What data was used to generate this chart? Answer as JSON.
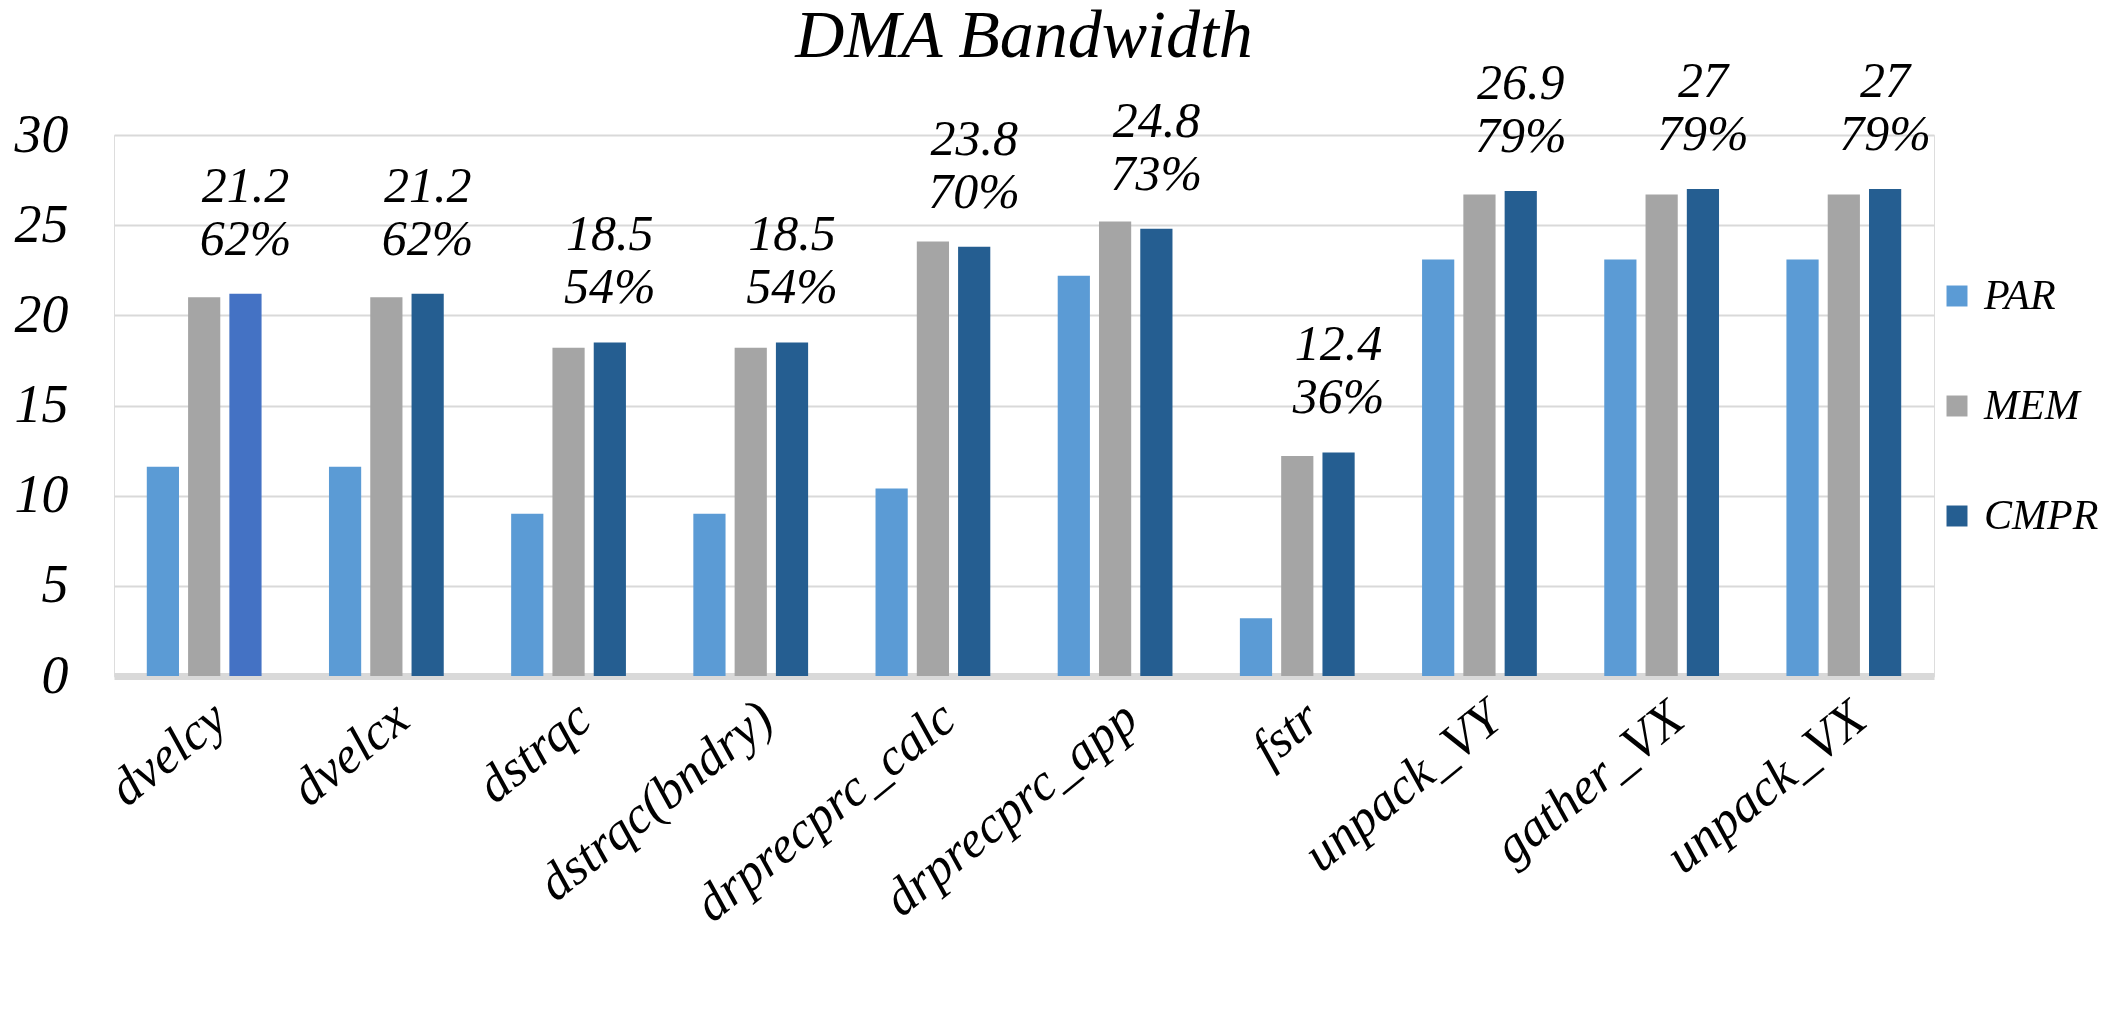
{
  "chart_data": {
    "type": "bar",
    "title": "DMA Bandwidth",
    "categories": [
      "dvelcy",
      "dvelcx",
      "dstrqc",
      "dstrqc(bndry)",
      "drprecprc_calc",
      "drprecprc_app",
      "fstr",
      "unpack_VY",
      "gather_VX",
      "unpack_VX"
    ],
    "series": [
      {
        "name": "PAR",
        "color": "#5b9bd5",
        "values": [
          11.6,
          11.6,
          9.0,
          9.0,
          10.4,
          22.2,
          3.2,
          23.1,
          23.1,
          23.1
        ]
      },
      {
        "name": "MEM",
        "color": "#a5a5a5",
        "values": [
          21.0,
          21.0,
          18.2,
          18.2,
          24.1,
          25.2,
          12.2,
          26.7,
          26.7,
          26.7
        ]
      },
      {
        "name": "CMPR",
        "color": "#255e91",
        "colors": [
          "#4472c4",
          "#255e91",
          "#255e91",
          "#255e91",
          "#255e91",
          "#255e91",
          "#255e91",
          "#255e91",
          "#255e91",
          "#255e91"
        ],
        "values": [
          21.2,
          21.2,
          18.5,
          18.5,
          23.8,
          24.8,
          12.4,
          26.9,
          27,
          27
        ],
        "value_labels": [
          "21.2\n62%",
          "21.2\n62%",
          "18.5\n54%",
          "18.5\n54%",
          "23.8\n70%",
          "24.8\n73%",
          "12.4\n36%",
          "26.9\n79%",
          "27\n79%",
          "27\n79%"
        ]
      }
    ],
    "ylim": [
      0,
      30
    ],
    "yticks": [
      0,
      5,
      10,
      15,
      20,
      25,
      30
    ],
    "grid": "y",
    "legend": "right"
  }
}
